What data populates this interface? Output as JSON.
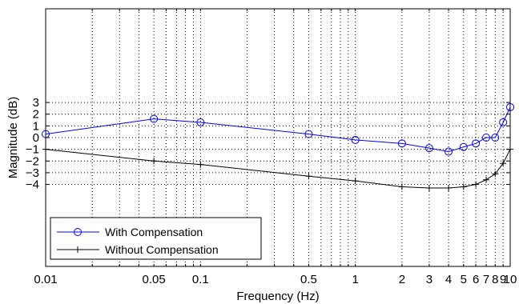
{
  "chart_data": {
    "type": "line",
    "xlabel": "Frequency (Hz)",
    "ylabel": "Magnitude (dB)",
    "xscale": "log",
    "xlim": [
      0.01,
      10
    ],
    "ylim": [
      -11,
      11
    ],
    "grid": true,
    "legend_position": "bottom-left",
    "x_ticks": [
      0.01,
      0.05,
      0.1,
      0.5,
      1,
      2,
      3,
      4,
      5,
      6,
      7,
      8,
      9,
      10
    ],
    "x_tick_labels": [
      "0.01",
      "0.05",
      "0.1",
      "0.5",
      "1",
      "2",
      "3",
      "4",
      "5",
      "6",
      "7",
      "8",
      "9",
      "10"
    ],
    "y_ticks": [
      3,
      2,
      1,
      0,
      -1,
      -2,
      -3,
      -4
    ],
    "y_tick_labels": [
      "3",
      "2",
      "1",
      "0",
      "−1",
      "−2",
      "−3",
      "−4"
    ],
    "series": [
      {
        "name": "With Compensation",
        "color": "#0000ff",
        "marker": "circle",
        "x": [
          0.01,
          0.05,
          0.1,
          0.5,
          1,
          2,
          3,
          4,
          5,
          6,
          7,
          8,
          9,
          10
        ],
        "y": [
          0.3,
          1.6,
          1.3,
          0.3,
          -0.2,
          -0.5,
          -0.9,
          -1.2,
          -0.8,
          -0.5,
          0.0,
          0.0,
          1.3,
          2.6
        ]
      },
      {
        "name": "Without Compensation",
        "color": "#000000",
        "marker": "plus",
        "x": [
          0.01,
          0.05,
          0.1,
          0.5,
          1,
          2,
          3,
          4,
          5,
          6,
          7,
          8,
          9,
          10
        ],
        "y": [
          -1.0,
          -2.0,
          -2.3,
          -3.3,
          -3.7,
          -4.2,
          -4.3,
          -4.3,
          -4.2,
          -4.0,
          -3.6,
          -3.1,
          -2.2,
          -1.0
        ]
      }
    ]
  }
}
